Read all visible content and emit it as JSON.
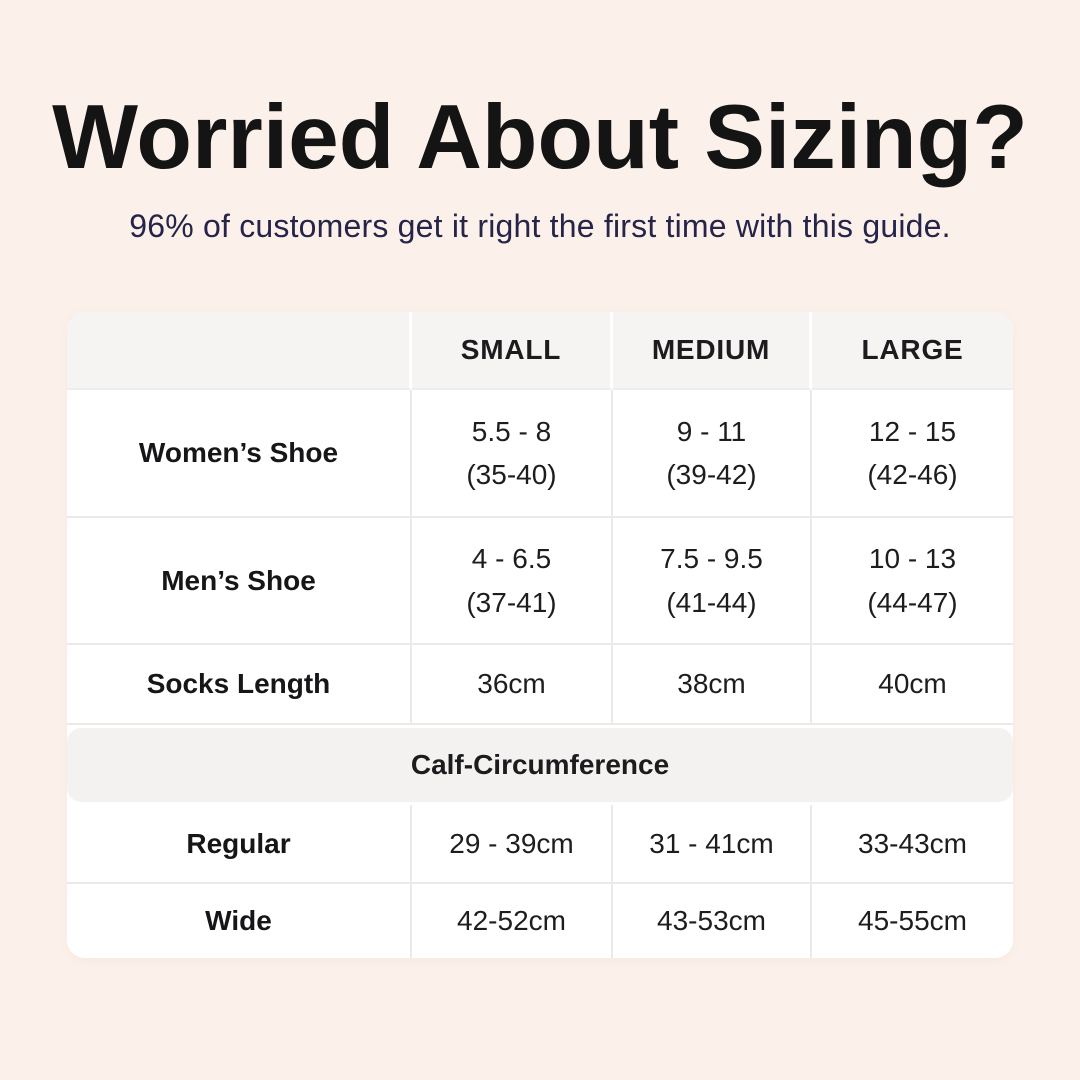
{
  "page": {
    "title": "Worried About Sizing?",
    "subtitle": "96% of customers get it right the first time with this guide."
  },
  "colors": {
    "background": "#fcf1ea",
    "card": "#ffffff",
    "header_band": "#f5f4f2",
    "section_band": "#f3f2f0",
    "divider": "#eceae8",
    "title_text": "#141414",
    "subtitle_text": "#262449",
    "cell_text": "#1d1d1f"
  },
  "table": {
    "columns": [
      "",
      "SMALL",
      "MEDIUM",
      "LARGE"
    ],
    "rows": [
      {
        "label": "Women’s Shoe",
        "values": [
          [
            "5.5 - 8",
            "(35-40)"
          ],
          [
            "9 - 11",
            "(39-42)"
          ],
          [
            "12 - 15",
            "(42-46)"
          ]
        ]
      },
      {
        "label": "Men’s Shoe",
        "values": [
          [
            "4 - 6.5",
            "(37-41)"
          ],
          [
            "7.5 - 9.5",
            "(41-44)"
          ],
          [
            "10 - 13",
            "(44-47)"
          ]
        ]
      },
      {
        "label": "Socks Length",
        "values": [
          [
            "36cm"
          ],
          [
            "38cm"
          ],
          [
            "40cm"
          ]
        ]
      }
    ],
    "section_header": "Calf-Circumference",
    "section_rows": [
      {
        "label": "Regular",
        "values": [
          [
            "29 - 39cm"
          ],
          [
            "31 - 41cm"
          ],
          [
            "33-43cm"
          ]
        ]
      },
      {
        "label": "Wide",
        "values": [
          [
            "42-52cm"
          ],
          [
            "43-53cm"
          ],
          [
            "45-55cm"
          ]
        ]
      }
    ]
  }
}
